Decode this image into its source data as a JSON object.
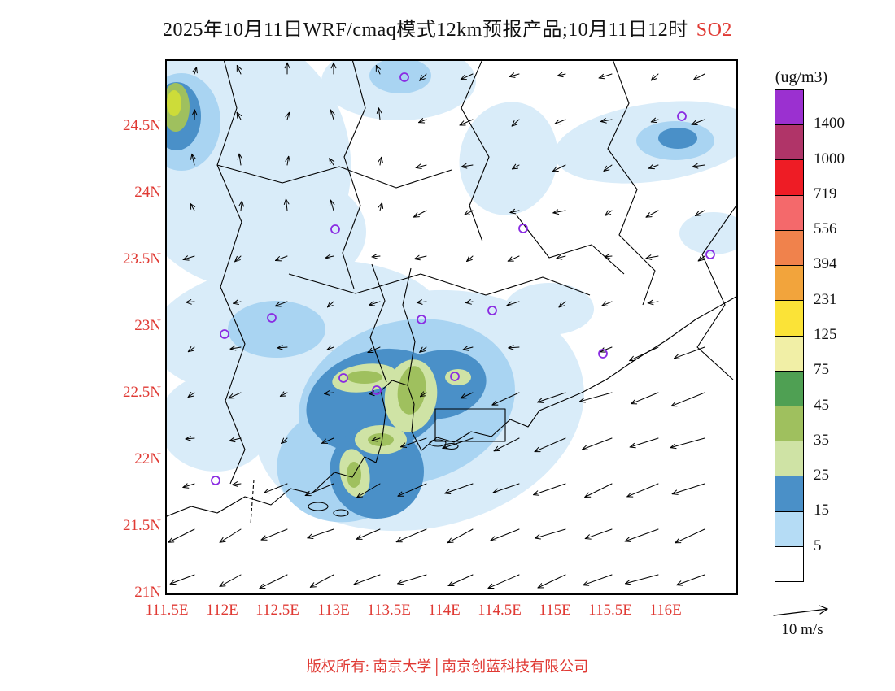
{
  "title": {
    "main": "2025年10月11日WRF/cmaq模式12km预报产品;10月11日12时",
    "species": "SO2"
  },
  "colors": {
    "accent_red": "#e03a34",
    "station_marker": "#8a2be2",
    "map_fills": {
      "pale_blue": "#D9ECF9",
      "medium_blue": "#A9D4F2",
      "dark_blue": "#4A90C8",
      "pale_green": "#CFE3A5",
      "olive_green": "#9FC05E",
      "yellow_green": "#CDDC39"
    }
  },
  "axes": {
    "lat_labels": [
      "24.5N",
      "24N",
      "23.5N",
      "23N",
      "22.5N",
      "22N",
      "21.5N",
      "21N"
    ],
    "lon_labels": [
      "111.5E",
      "112E",
      "112.5E",
      "113E",
      "113.5E",
      "114E",
      "114.5E",
      "115E",
      "115.5E",
      "116E"
    ]
  },
  "legend": {
    "units": "(ug/m3)",
    "labels": [
      "1400",
      "1000",
      "719",
      "556",
      "394",
      "231",
      "125",
      "75",
      "45",
      "35",
      "25",
      "15",
      "5"
    ],
    "cell_colors_top_to_bottom": [
      "#9B30D0",
      "#B03468",
      "#EE1C25",
      "#F4696B",
      "#F0824C",
      "#F2A43C",
      "#FBE337",
      "#F1EFA6",
      "#4FA053",
      "#9FC05E",
      "#CFE3A5",
      "#4A90C8",
      "#B5DCF5",
      "#FFFFFF"
    ]
  },
  "wind_scale": {
    "label": "10 m/s"
  },
  "footer": {
    "text": "版权所有: 南京大学│南京创蓝科技有限公司"
  },
  "station_markers": [
    [
      292,
      20
    ],
    [
      633,
      68
    ],
    [
      207,
      207
    ],
    [
      438,
      206
    ],
    [
      668,
      238
    ],
    [
      129,
      316
    ],
    [
      71,
      336
    ],
    [
      313,
      318
    ],
    [
      400,
      307
    ],
    [
      536,
      360
    ],
    [
      217,
      390
    ],
    [
      258,
      405
    ],
    [
      354,
      388
    ],
    [
      60,
      516
    ]
  ]
}
